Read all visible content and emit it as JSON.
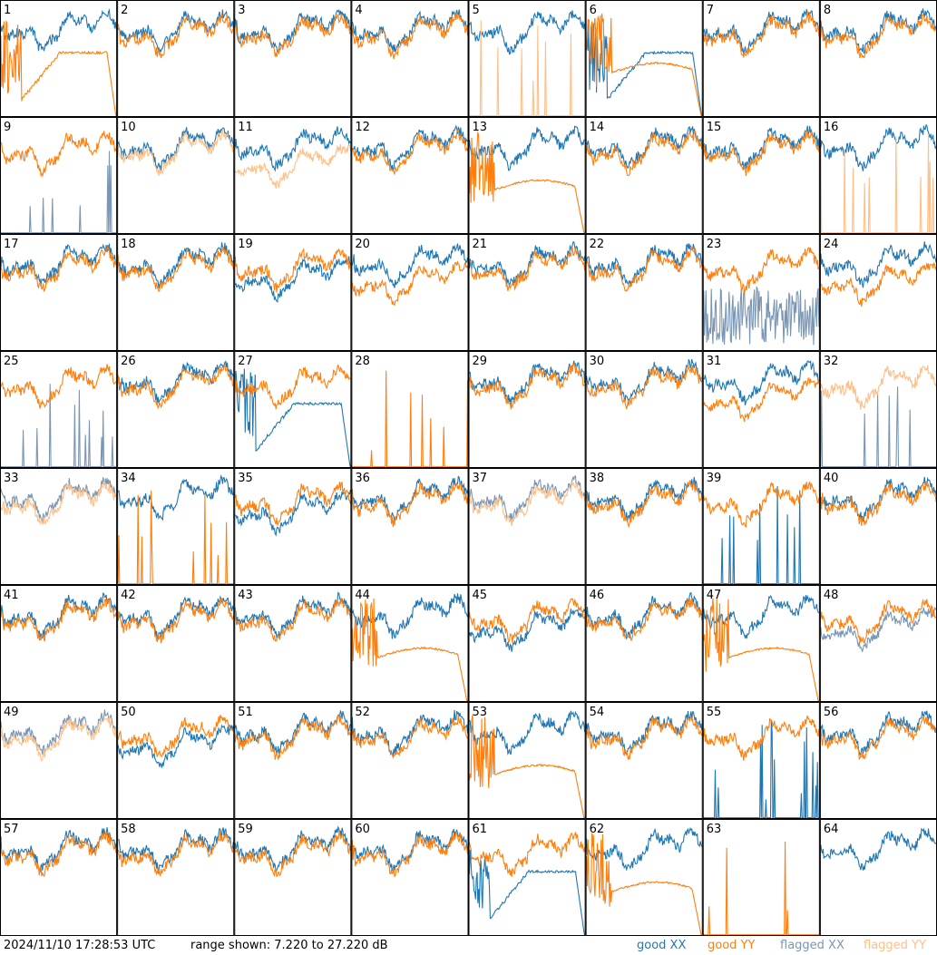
{
  "footer": {
    "timestamp": "2024/11/10 17:28:53 UTC",
    "range": "range shown: 7.220 to 27.220 dB"
  },
  "legend": [
    {
      "id": "gx",
      "label": "good XX",
      "color": "#1f77b4"
    },
    {
      "id": "gy",
      "label": "good YY",
      "color": "#ff7f0e"
    },
    {
      "id": "fx",
      "label": "flagged XX",
      "color": "#7a96b4"
    },
    {
      "id": "fy",
      "label": "flagged YY",
      "color": "#ffbf86"
    }
  ],
  "chart_data": {
    "type": "line",
    "grid": {
      "rows": 8,
      "cols": 8
    },
    "ylim": [
      7.22,
      27.22
    ],
    "panels": [
      {
        "n": "1",
        "xx": "good",
        "yy": "good",
        "xxStyle": "normal",
        "yyStyle": "collapse"
      },
      {
        "n": "2",
        "xx": "good",
        "yy": "good",
        "xxStyle": "normal",
        "yyStyle": "normal"
      },
      {
        "n": "3",
        "xx": "good",
        "yy": "good",
        "xxStyle": "normal",
        "yyStyle": "normal"
      },
      {
        "n": "4",
        "xx": "good",
        "yy": "good",
        "xxStyle": "normal",
        "yyStyle": "normal"
      },
      {
        "n": "5",
        "xx": "good",
        "yy": "flagged",
        "xxStyle": "normal",
        "yyStyle": "spikes"
      },
      {
        "n": "6",
        "xx": "good",
        "yy": "good",
        "xxStyle": "collapse",
        "yyStyle": "flat"
      },
      {
        "n": "7",
        "xx": "good",
        "yy": "good",
        "xxStyle": "normal",
        "yyStyle": "normal"
      },
      {
        "n": "8",
        "xx": "good",
        "yy": "good",
        "xxStyle": "normal",
        "yyStyle": "normal"
      },
      {
        "n": "9",
        "xx": "flagged",
        "yy": "good",
        "xxStyle": "spikes",
        "yyStyle": "normal"
      },
      {
        "n": "10",
        "xx": "good",
        "yy": "flagged",
        "xxStyle": "normal",
        "yyStyle": "normal"
      },
      {
        "n": "11",
        "xx": "good",
        "yy": "flagged",
        "xxStyle": "normal",
        "yyStyle": "low"
      },
      {
        "n": "12",
        "xx": "good",
        "yy": "good",
        "xxStyle": "normal",
        "yyStyle": "normal"
      },
      {
        "n": "13",
        "xx": "good",
        "yy": "good",
        "xxStyle": "normal",
        "yyStyle": "flat"
      },
      {
        "n": "14",
        "xx": "good",
        "yy": "good",
        "xxStyle": "normal",
        "yyStyle": "normal"
      },
      {
        "n": "15",
        "xx": "good",
        "yy": "good",
        "xxStyle": "normal",
        "yyStyle": "normal"
      },
      {
        "n": "16",
        "xx": "good",
        "yy": "flagged",
        "xxStyle": "normal",
        "yyStyle": "spikes"
      },
      {
        "n": "17",
        "xx": "good",
        "yy": "good",
        "xxStyle": "normal",
        "yyStyle": "normal"
      },
      {
        "n": "18",
        "xx": "good",
        "yy": "good",
        "xxStyle": "normal",
        "yyStyle": "normal"
      },
      {
        "n": "19",
        "xx": "good",
        "yy": "good",
        "xxStyle": "low",
        "yyStyle": "normal"
      },
      {
        "n": "20",
        "xx": "good",
        "yy": "good",
        "xxStyle": "normal",
        "yyStyle": "low"
      },
      {
        "n": "21",
        "xx": "good",
        "yy": "good",
        "xxStyle": "normal",
        "yyStyle": "normal"
      },
      {
        "n": "22",
        "xx": "good",
        "yy": "good",
        "xxStyle": "normal",
        "yyStyle": "normal"
      },
      {
        "n": "23",
        "xx": "flagged",
        "yy": "good",
        "xxStyle": "noisy",
        "yyStyle": "normal"
      },
      {
        "n": "24",
        "xx": "good",
        "yy": "good",
        "xxStyle": "normal",
        "yyStyle": "low"
      },
      {
        "n": "25",
        "xx": "flagged",
        "yy": "good",
        "xxStyle": "spikes",
        "yyStyle": "normal"
      },
      {
        "n": "26",
        "xx": "good",
        "yy": "good",
        "xxStyle": "normal",
        "yyStyle": "normal"
      },
      {
        "n": "27",
        "xx": "good",
        "yy": "good",
        "xxStyle": "collapse",
        "yyStyle": "normal"
      },
      {
        "n": "28",
        "xx": "good",
        "yy": "good",
        "xxStyle": "none",
        "yyStyle": "spikes"
      },
      {
        "n": "29",
        "xx": "good",
        "yy": "good",
        "xxStyle": "normal",
        "yyStyle": "normal"
      },
      {
        "n": "30",
        "xx": "good",
        "yy": "good",
        "xxStyle": "normal",
        "yyStyle": "normal"
      },
      {
        "n": "31",
        "xx": "good",
        "yy": "good",
        "xxStyle": "normal",
        "yyStyle": "low"
      },
      {
        "n": "32",
        "xx": "flagged",
        "yy": "flagged",
        "xxStyle": "spikes",
        "yyStyle": "normal"
      },
      {
        "n": "33",
        "xx": "flagged",
        "yy": "flagged",
        "xxStyle": "normal",
        "yyStyle": "normal"
      },
      {
        "n": "34",
        "xx": "good",
        "yy": "good",
        "xxStyle": "normal",
        "yyStyle": "spikes"
      },
      {
        "n": "35",
        "xx": "good",
        "yy": "good",
        "xxStyle": "low",
        "yyStyle": "normal"
      },
      {
        "n": "36",
        "xx": "good",
        "yy": "good",
        "xxStyle": "normal",
        "yyStyle": "normal"
      },
      {
        "n": "37",
        "xx": "flagged",
        "yy": "flagged",
        "xxStyle": "normal",
        "yyStyle": "normal"
      },
      {
        "n": "38",
        "xx": "good",
        "yy": "good",
        "xxStyle": "normal",
        "yyStyle": "normal"
      },
      {
        "n": "39",
        "xx": "good",
        "yy": "good",
        "xxStyle": "spikes",
        "yyStyle": "normal"
      },
      {
        "n": "40",
        "xx": "good",
        "yy": "good",
        "xxStyle": "normal",
        "yyStyle": "normal"
      },
      {
        "n": "41",
        "xx": "good",
        "yy": "good",
        "xxStyle": "normal",
        "yyStyle": "normal"
      },
      {
        "n": "42",
        "xx": "good",
        "yy": "good",
        "xxStyle": "normal",
        "yyStyle": "normal"
      },
      {
        "n": "43",
        "xx": "good",
        "yy": "good",
        "xxStyle": "normal",
        "yyStyle": "normal"
      },
      {
        "n": "44",
        "xx": "good",
        "yy": "good",
        "xxStyle": "normal",
        "yyStyle": "flat"
      },
      {
        "n": "45",
        "xx": "good",
        "yy": "good",
        "xxStyle": "low",
        "yyStyle": "normal"
      },
      {
        "n": "46",
        "xx": "good",
        "yy": "good",
        "xxStyle": "normal",
        "yyStyle": "normal"
      },
      {
        "n": "47",
        "xx": "good",
        "yy": "good",
        "xxStyle": "normal",
        "yyStyle": "flat"
      },
      {
        "n": "48",
        "xx": "flagged",
        "yy": "good",
        "xxStyle": "low",
        "yyStyle": "normal"
      },
      {
        "n": "49",
        "xx": "flagged",
        "yy": "flagged",
        "xxStyle": "normal",
        "yyStyle": "normal"
      },
      {
        "n": "50",
        "xx": "good",
        "yy": "good",
        "xxStyle": "low",
        "yyStyle": "normal"
      },
      {
        "n": "51",
        "xx": "good",
        "yy": "good",
        "xxStyle": "normal",
        "yyStyle": "normal"
      },
      {
        "n": "52",
        "xx": "good",
        "yy": "good",
        "xxStyle": "normal",
        "yyStyle": "normal"
      },
      {
        "n": "53",
        "xx": "good",
        "yy": "good",
        "xxStyle": "normal",
        "yyStyle": "flat"
      },
      {
        "n": "54",
        "xx": "good",
        "yy": "good",
        "xxStyle": "normal",
        "yyStyle": "normal"
      },
      {
        "n": "55",
        "xx": "good",
        "yy": "good",
        "xxStyle": "spikes",
        "yyStyle": "normal"
      },
      {
        "n": "56",
        "xx": "good",
        "yy": "good",
        "xxStyle": "normal",
        "yyStyle": "normal"
      },
      {
        "n": "57",
        "xx": "good",
        "yy": "good",
        "xxStyle": "normal",
        "yyStyle": "normal"
      },
      {
        "n": "58",
        "xx": "good",
        "yy": "good",
        "xxStyle": "normal",
        "yyStyle": "normal"
      },
      {
        "n": "59",
        "xx": "good",
        "yy": "good",
        "xxStyle": "normal",
        "yyStyle": "normal"
      },
      {
        "n": "60",
        "xx": "good",
        "yy": "good",
        "xxStyle": "normal",
        "yyStyle": "normal"
      },
      {
        "n": "61",
        "xx": "good",
        "yy": "good",
        "xxStyle": "collapse",
        "yyStyle": "normal"
      },
      {
        "n": "62",
        "xx": "good",
        "yy": "good",
        "xxStyle": "normal",
        "yyStyle": "flat"
      },
      {
        "n": "63",
        "xx": "good",
        "yy": "good",
        "xxStyle": "none",
        "yyStyle": "spikes"
      },
      {
        "n": "64",
        "xx": "good",
        "yy": "good",
        "xxStyle": "normal",
        "yyStyle": "none"
      }
    ]
  }
}
